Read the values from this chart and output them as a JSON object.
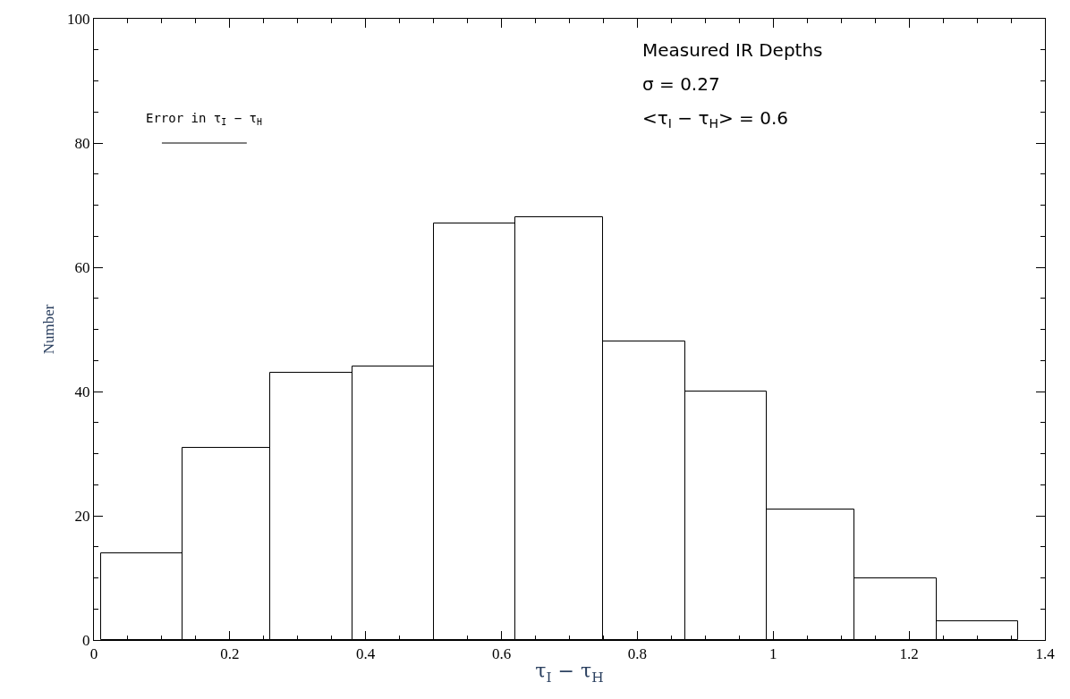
{
  "chart_data": {
    "type": "histogram",
    "xlabel": "τ$_{I}$ − τ$_{H}$",
    "ylabel": "Number",
    "bins": [
      0.01,
      0.13,
      0.26,
      0.38,
      0.5,
      0.62,
      0.75,
      0.87,
      0.99,
      1.12,
      1.24,
      1.36
    ],
    "values": [
      14,
      31,
      43,
      44,
      67,
      68,
      48,
      40,
      21,
      10,
      3
    ],
    "color": "#000000",
    "series": [
      {
        "type": "line",
        "x": [
          0.1,
          0.225
        ],
        "values": [
          80,
          80
        ],
        "marker": "none",
        "color": "#000000"
      }
    ],
    "annotations": [
      "Measured IR Depths",
      "σ = 0.27",
      "<τ$_{I}$ − τ$_{H}$> = 0.6",
      {
        "text": "Error in τ$_{I}$ − τ$_{H}$",
        "x": 0.1625,
        "y": 80
      }
    ],
    "xlim": [
      0,
      1.4
    ],
    "xticks": [
      0,
      0.2,
      0.4,
      0.6,
      0.8,
      1,
      1.2,
      1.4
    ],
    "ylim": [
      0,
      100
    ],
    "yticks": [
      0,
      20,
      40,
      60,
      80,
      100
    ]
  }
}
